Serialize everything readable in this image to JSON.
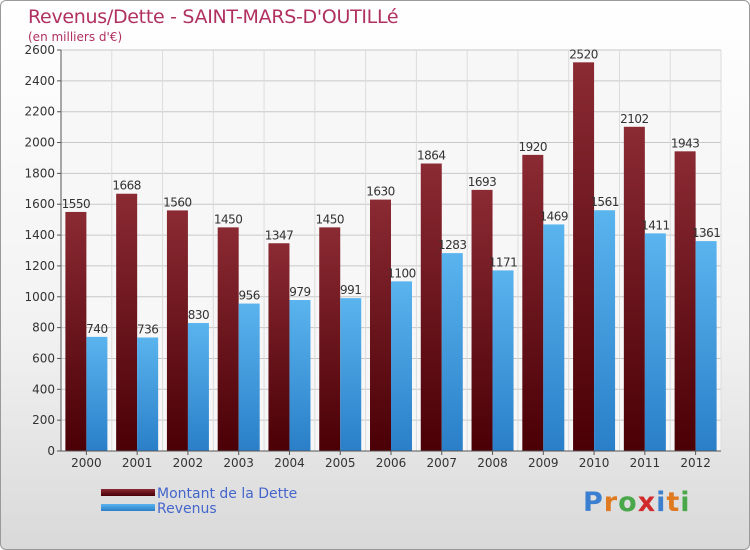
{
  "chart_data": {
    "type": "bar",
    "title": "Revenus/Dette - SAINT-MARS-D'OUTILLé",
    "subtitle": "(en milliers d'€)",
    "categories": [
      "2000",
      "2001",
      "2002",
      "2003",
      "2004",
      "2005",
      "2006",
      "2007",
      "2008",
      "2009",
      "2010",
      "2011",
      "2012"
    ],
    "series": [
      {
        "name": "Montant de la Dette",
        "values": [
          1550,
          1668,
          1560,
          1450,
          1347,
          1450,
          1630,
          1864,
          1693,
          1920,
          2520,
          2102,
          1943
        ]
      },
      {
        "name": "Revenus",
        "values": [
          740,
          736,
          830,
          956,
          979,
          991,
          1100,
          1283,
          1171,
          1469,
          1561,
          1411,
          1361
        ]
      }
    ],
    "ylim": [
      0,
      2600
    ],
    "yticks": [
      0,
      200,
      400,
      600,
      800,
      1000,
      1200,
      1400,
      1600,
      1800,
      2000,
      2200,
      2400,
      2600
    ],
    "xlabel": "",
    "ylabel": "",
    "grid": true,
    "legend_position": "bottom-left"
  },
  "legend": {
    "items": [
      {
        "label": "Montant de la Dette",
        "color": "#6b0d14"
      },
      {
        "label": "Revenus",
        "color": "#3a9ee0"
      }
    ]
  },
  "logo": {
    "text": "Proxiti"
  },
  "colors": {
    "title": "#b03060",
    "debt_dark": "#5a0008",
    "debt_light": "#8b2a33",
    "revenue_dark": "#2a7fc8",
    "revenue_light": "#5ab4ee",
    "legend_text": "#4466cc"
  }
}
